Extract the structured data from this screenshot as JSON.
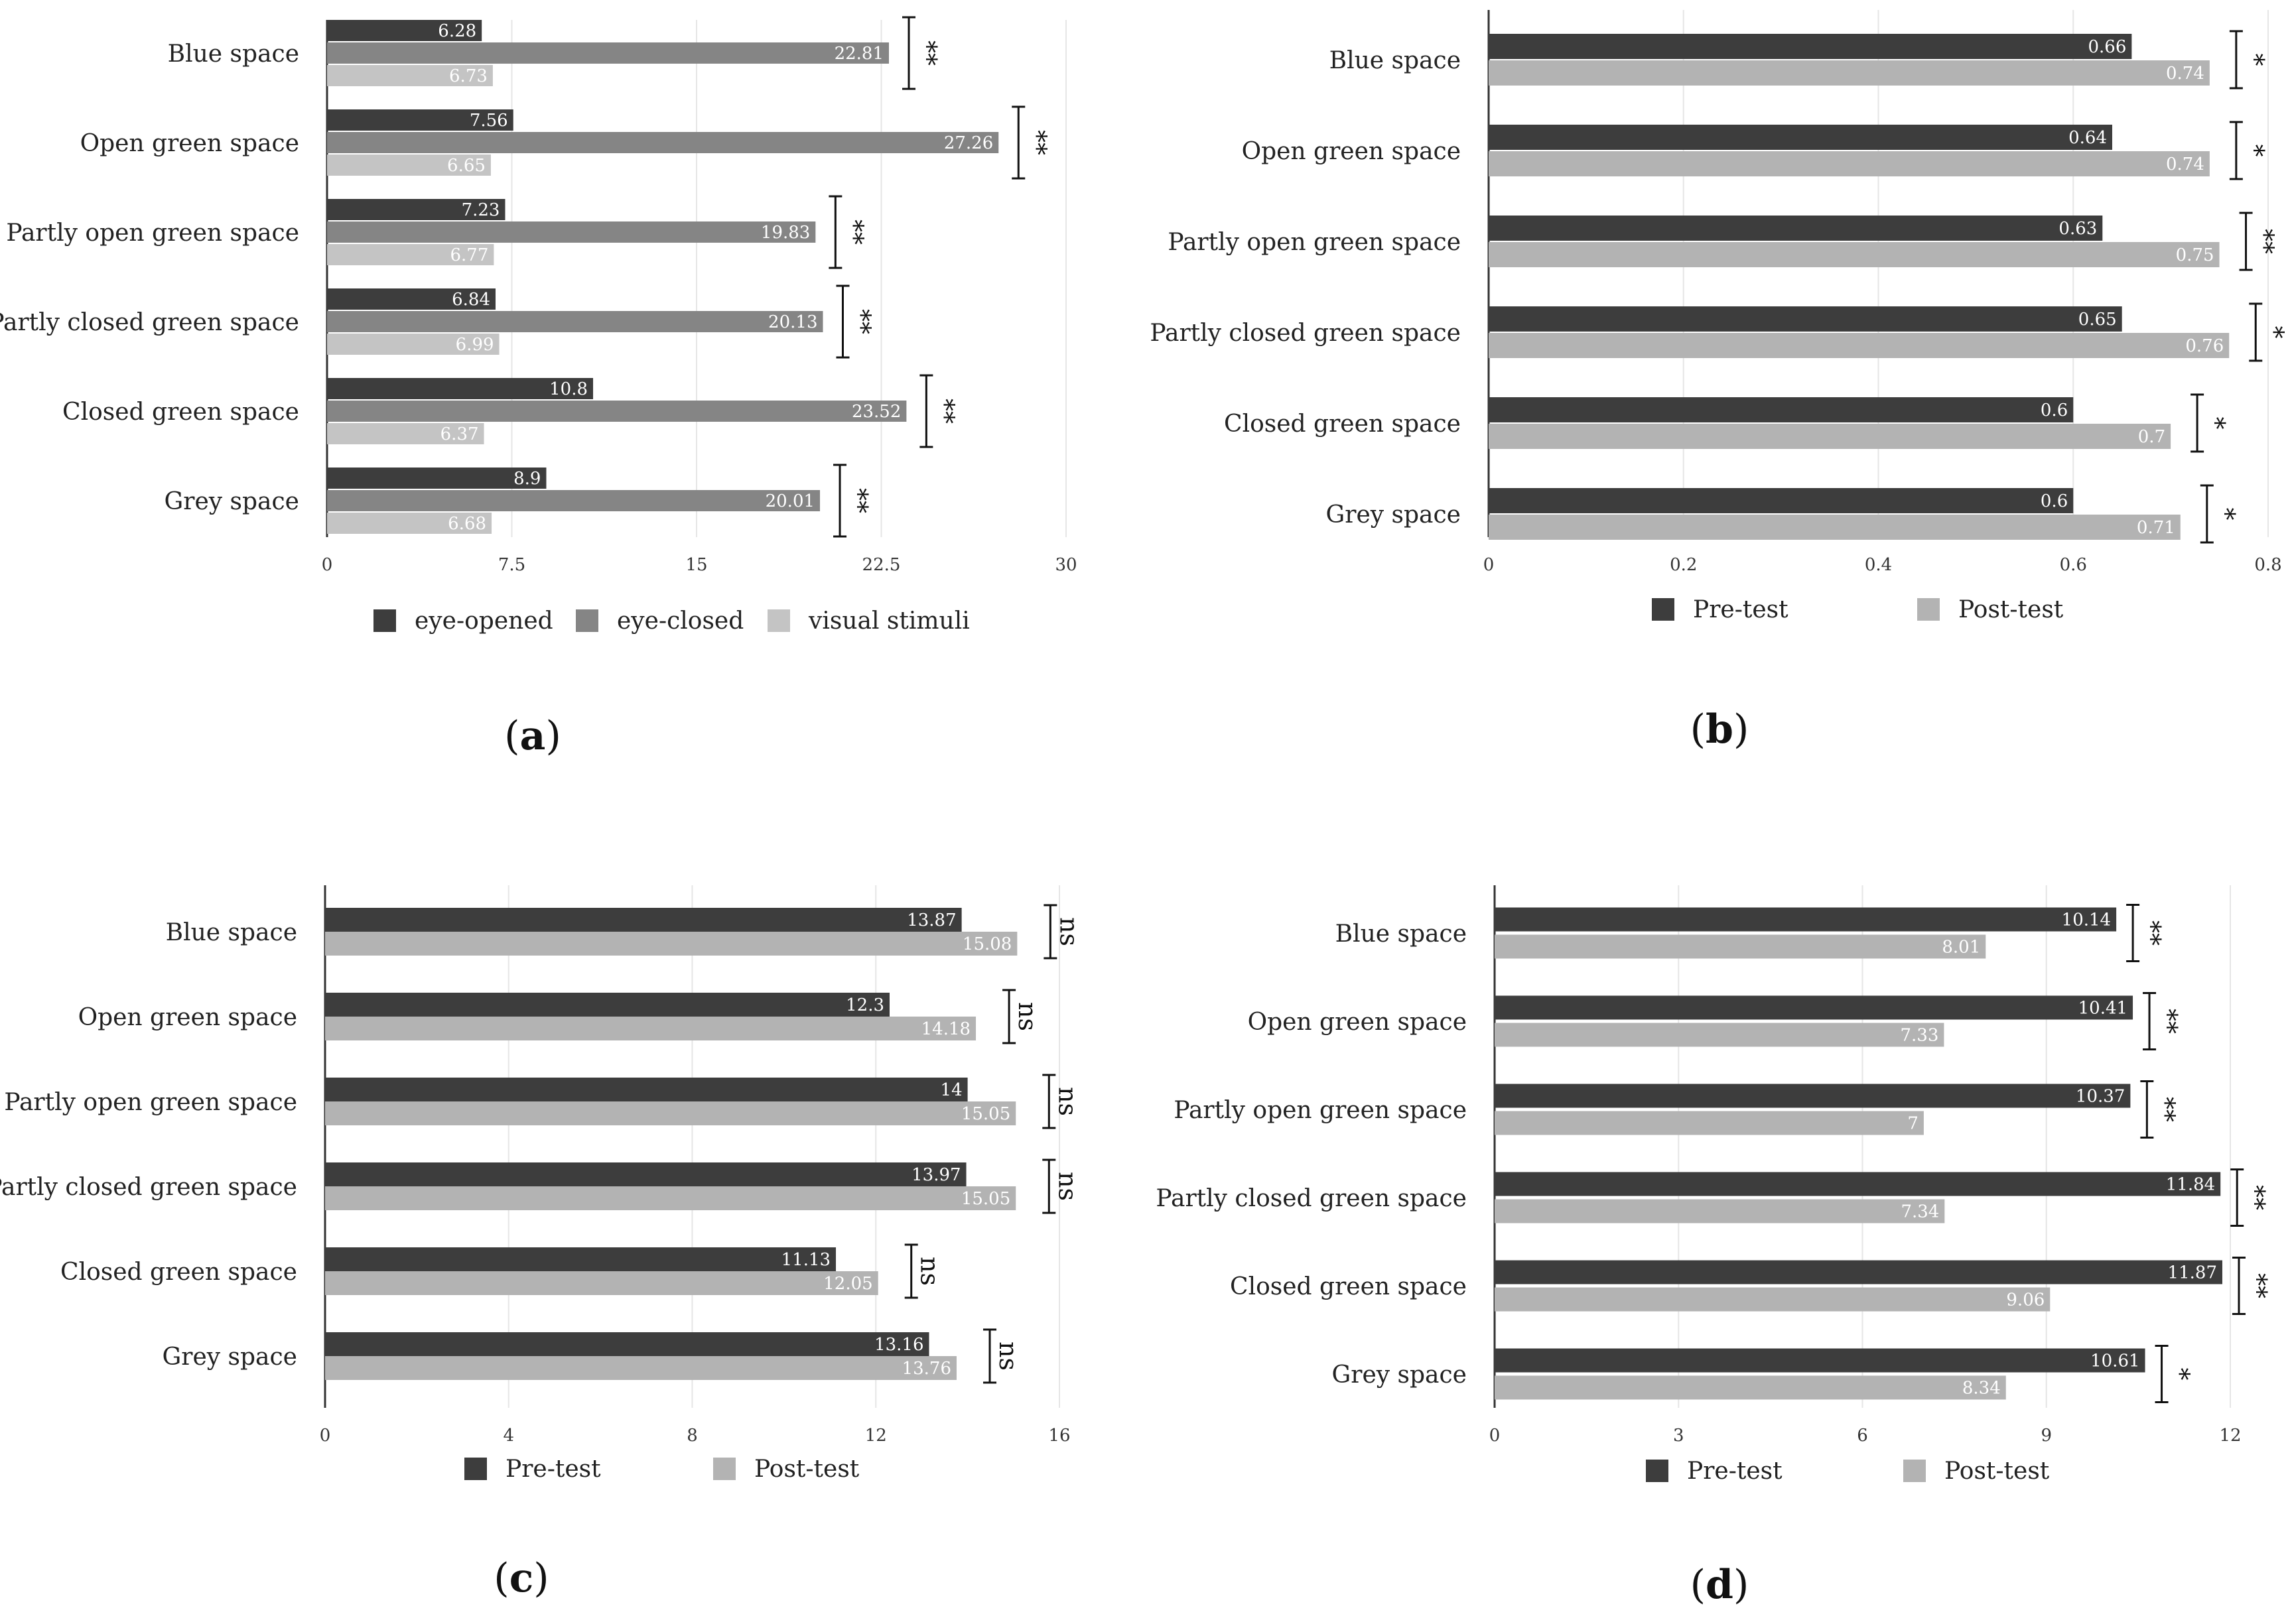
{
  "chart_data": [
    {
      "panel": "(a)",
      "panel_letter": "a",
      "type": "bar",
      "orientation": "horizontal",
      "categories": [
        "Blue space",
        "Open green space",
        "Partly open green space",
        "Partly closed green space",
        "Closed green space",
        "Grey space"
      ],
      "series": [
        {
          "name": "eye-opened",
          "color": "#3d3d3d",
          "values": [
            6.28,
            7.56,
            7.23,
            6.84,
            10.8,
            8.9
          ],
          "labels": [
            "6.28",
            "7.56",
            "7.23",
            "6.84",
            "10.8",
            "8.9"
          ]
        },
        {
          "name": "eye-closed",
          "color": "#858585",
          "values": [
            22.81,
            27.26,
            19.83,
            20.13,
            23.52,
            20.01
          ],
          "labels": [
            "22.81",
            "27.26",
            "19.83",
            "20.13",
            "23.52",
            "20.01"
          ]
        },
        {
          "name": "visual stimuli",
          "color": "#c4c4c4",
          "values": [
            6.73,
            6.65,
            6.77,
            6.99,
            6.37,
            6.68
          ],
          "labels": [
            "6.73",
            "6.65",
            "6.77",
            "6.99",
            "6.37",
            "6.68"
          ]
        }
      ],
      "significance": [
        "**",
        "**",
        "**",
        "**",
        "**",
        "**"
      ],
      "xlim": [
        0,
        30
      ],
      "xticks": [
        "0",
        "7.5",
        "15",
        "22.5",
        "30"
      ],
      "xtick_values": [
        0,
        7.5,
        15,
        22.5,
        30
      ],
      "grid": true,
      "legend": "bottom"
    },
    {
      "panel": "(b)",
      "panel_letter": "b",
      "type": "bar",
      "orientation": "horizontal",
      "categories": [
        "Blue space",
        "Open green space",
        "Partly open green space",
        "Partly closed green space",
        "Closed green space",
        "Grey space"
      ],
      "series": [
        {
          "name": "Pre-test",
          "color": "#3d3d3d",
          "values": [
            0.66,
            0.64,
            0.63,
            0.65,
            0.6,
            0.6
          ],
          "labels": [
            "0.66",
            "0.64",
            "0.63",
            "0.65",
            "0.6",
            "0.6"
          ]
        },
        {
          "name": "Post-test",
          "color": "#b3b3b3",
          "values": [
            0.74,
            0.74,
            0.75,
            0.76,
            0.7,
            0.71
          ],
          "labels": [
            "0.74",
            "0.74",
            "0.75",
            "0.76",
            "0.7",
            "0.71"
          ]
        }
      ],
      "significance": [
        "*",
        "*",
        "**",
        "*",
        "*",
        "*"
      ],
      "xlim": [
        0,
        0.8
      ],
      "xticks": [
        "0",
        "0.2",
        "0.4",
        "0.6",
        "0.8"
      ],
      "xtick_values": [
        0,
        0.2,
        0.4,
        0.6,
        0.8
      ],
      "grid": true,
      "legend": "bottom"
    },
    {
      "panel": "(c)",
      "panel_letter": "c",
      "type": "bar",
      "orientation": "horizontal",
      "categories": [
        "Blue space",
        "Open green space",
        "Partly open green space",
        "Partly closed green space",
        "Closed green space",
        "Grey space"
      ],
      "series": [
        {
          "name": "Pre-test",
          "color": "#3d3d3d",
          "values": [
            13.87,
            12.3,
            14,
            13.97,
            11.13,
            13.16
          ],
          "labels": [
            "13.87",
            "12.3",
            "14",
            "13.97",
            "11.13",
            "13.16"
          ]
        },
        {
          "name": "Post-test",
          "color": "#b3b3b3",
          "values": [
            15.08,
            14.18,
            15.05,
            15.05,
            12.05,
            13.76
          ],
          "labels": [
            "15.08",
            "14.18",
            "15.05",
            "15.05",
            "12.05",
            "13.76"
          ]
        }
      ],
      "significance": [
        "ns",
        "ns",
        "ns",
        "ns",
        "ns",
        "ns"
      ],
      "xlim": [
        0,
        16
      ],
      "xticks": [
        "0",
        "4",
        "8",
        "12",
        "16"
      ],
      "xtick_values": [
        0,
        4,
        8,
        12,
        16
      ],
      "grid": true,
      "legend": "bottom"
    },
    {
      "panel": "(d)",
      "panel_letter": "d",
      "type": "bar",
      "orientation": "horizontal",
      "categories": [
        "Blue space",
        "Open green space",
        "Partly open green space",
        "Partly closed green space",
        "Closed green space",
        "Grey space"
      ],
      "series": [
        {
          "name": "Pre-test",
          "color": "#3d3d3d",
          "values": [
            10.14,
            10.41,
            10.37,
            11.84,
            11.87,
            10.61
          ],
          "labels": [
            "10.14",
            "10.41",
            "10.37",
            "11.84",
            "11.87",
            "10.61"
          ]
        },
        {
          "name": "Post-test",
          "color": "#b3b3b3",
          "values": [
            8.01,
            7.33,
            7,
            7.34,
            9.06,
            8.34
          ],
          "labels": [
            "8.01",
            "7.33",
            "7",
            "7.34",
            "9.06",
            "8.34"
          ]
        }
      ],
      "significance": [
        "**",
        "**",
        "**",
        "**",
        "**",
        "*"
      ],
      "xlim": [
        0,
        12
      ],
      "xticks": [
        "0",
        "3",
        "6",
        "9",
        "12"
      ],
      "xtick_values": [
        0,
        3,
        6,
        9,
        12
      ],
      "grid": true,
      "legend": "bottom"
    }
  ]
}
